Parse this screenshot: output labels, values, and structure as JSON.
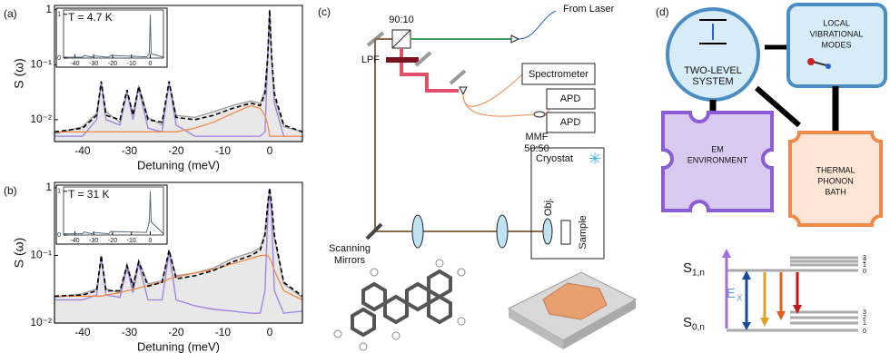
{
  "chart_data": [
    {
      "type": "line",
      "label": "(a)",
      "ylabel": "S (ω)",
      "xlabel": "Detuning (meV)",
      "log_y": true,
      "xlim": [
        -46,
        7
      ],
      "xticks": [
        -40,
        -30,
        -20,
        -10,
        0
      ],
      "ylim": [
        0.004,
        1.2
      ],
      "yticks": [
        {
          "value": 0.01,
          "label": "10⁻²"
        },
        {
          "value": 0.1,
          "label": "10⁻¹"
        },
        1
      ],
      "x": [
        -46,
        -40,
        -37,
        -36,
        -35,
        -32,
        -30.5,
        -29.2,
        -28,
        -26,
        -23,
        -21.5,
        -20,
        -16,
        -12,
        -8,
        -4,
        -2,
        -1,
        -0.4,
        0,
        0.4,
        1,
        3,
        7
      ],
      "series": [
        {
          "style": "area",
          "color": "#9a9a9a",
          "values": [
            0.0055,
            0.0075,
            0.013,
            0.045,
            0.014,
            0.009,
            0.03,
            0.013,
            0.042,
            0.011,
            0.008,
            0.045,
            0.012,
            0.011,
            0.014,
            0.018,
            0.022,
            0.02,
            0.035,
            0.17,
            0.95,
            0.13,
            0.025,
            0.0075,
            0.006
          ]
        },
        {
          "style": "solid",
          "color": "#9b7fe0",
          "values": [
            0.005,
            0.005,
            0.01,
            0.048,
            0.01,
            0.008,
            0.033,
            0.01,
            0.038,
            0.007,
            0.006,
            0.048,
            0.008,
            0.005,
            0.005,
            0.005,
            0.005,
            0.005,
            0.006,
            0.14,
            1,
            0.14,
            0.02,
            0.005,
            0.005
          ]
        },
        {
          "style": "solid",
          "color": "#f08a4b",
          "values": [
            0.006,
            0.006,
            0.006,
            0.006,
            0.006,
            0.006,
            0.006,
            0.006,
            0.006,
            0.006,
            0.006,
            0.006,
            0.006,
            0.007,
            0.009,
            0.013,
            0.018,
            0.016,
            0.012,
            0.008,
            0.005,
            0.005,
            0.005,
            0.005,
            0.005
          ]
        },
        {
          "style": "dashed",
          "color": "#000000",
          "values": [
            0.006,
            0.007,
            0.012,
            0.05,
            0.012,
            0.01,
            0.035,
            0.012,
            0.04,
            0.01,
            0.009,
            0.05,
            0.011,
            0.01,
            0.012,
            0.016,
            0.02,
            0.018,
            0.03,
            0.15,
            1,
            0.15,
            0.03,
            0.008,
            0.006
          ]
        }
      ],
      "inset": {
        "text": "T = 4.7 K",
        "color": "#5a6b7a",
        "xlim": [
          -46,
          7
        ],
        "xticks": [
          -40,
          -30,
          -20,
          -10,
          0
        ],
        "ylim": [
          0,
          1.1
        ],
        "yticks": [
          0,
          1
        ],
        "x": [
          -46,
          -36,
          -35,
          -31,
          -30,
          -22,
          -21,
          -2,
          -0.5,
          0,
          0.5,
          7
        ],
        "values": [
          0.02,
          0.02,
          0.06,
          0.02,
          0.05,
          0.02,
          0.06,
          0.03,
          0.1,
          1,
          0.1,
          0.02
        ]
      }
    },
    {
      "type": "line",
      "label": "(b)",
      "ylabel": "S (ω)",
      "xlabel": "Detuning (meV)",
      "log_y": true,
      "xlim": [
        -46,
        7
      ],
      "xticks": [
        -40,
        -30,
        -20,
        -10,
        0
      ],
      "ylim": [
        0.01,
        1.2
      ],
      "yticks": [
        {
          "value": 0.01,
          "label": "10⁻²"
        },
        {
          "value": 0.1,
          "label": "10⁻¹"
        },
        1
      ],
      "x": [
        -46,
        -40,
        -37,
        -36,
        -35,
        -32,
        -30.5,
        -29.2,
        -28,
        -26,
        -23,
        -21.5,
        -20,
        -16,
        -12,
        -8,
        -4,
        -2,
        -1,
        -0.4,
        0,
        0.4,
        1,
        3,
        7
      ],
      "series": [
        {
          "style": "area",
          "color": "#9a9a9a",
          "values": [
            0.024,
            0.027,
            0.032,
            0.09,
            0.032,
            0.028,
            0.075,
            0.036,
            0.085,
            0.038,
            0.042,
            0.115,
            0.05,
            0.055,
            0.065,
            0.09,
            0.11,
            0.13,
            0.22,
            0.55,
            0.95,
            0.55,
            0.18,
            0.038,
            0.024
          ]
        },
        {
          "style": "solid",
          "color": "#9b7fe0",
          "values": [
            0.022,
            0.022,
            0.026,
            0.1,
            0.026,
            0.024,
            0.065,
            0.028,
            0.075,
            0.022,
            0.022,
            0.11,
            0.022,
            0.018,
            0.016,
            0.015,
            0.014,
            0.014,
            0.03,
            0.4,
            0.9,
            0.4,
            0.03,
            0.014,
            0.015
          ]
        },
        {
          "style": "solid",
          "color": "#f08a4b",
          "values": [
            0.025,
            0.025,
            0.025,
            0.025,
            0.026,
            0.028,
            0.03,
            0.031,
            0.033,
            0.036,
            0.04,
            0.045,
            0.048,
            0.055,
            0.062,
            0.075,
            0.09,
            0.1,
            0.1,
            0.1,
            0.09,
            0.08,
            0.06,
            0.03,
            0.022
          ]
        },
        {
          "style": "dashed",
          "color": "#000000",
          "values": [
            0.025,
            0.026,
            0.03,
            0.1,
            0.03,
            0.03,
            0.07,
            0.035,
            0.08,
            0.035,
            0.04,
            0.12,
            0.045,
            0.05,
            0.06,
            0.08,
            0.1,
            0.12,
            0.2,
            0.6,
            1,
            0.6,
            0.2,
            0.04,
            0.025
          ]
        }
      ],
      "inset": {
        "text": "T = 31 K",
        "color": "#5a6b7a",
        "xlim": [
          -46,
          7
        ],
        "xticks": [
          -40,
          -30,
          -20,
          -10,
          0
        ],
        "ylim": [
          0,
          1.1
        ],
        "yticks": [
          0,
          1
        ],
        "x": [
          -46,
          -36,
          -35,
          -31,
          -30,
          -22,
          -21,
          -2,
          -0.5,
          0,
          0.5,
          7
        ],
        "values": [
          0.03,
          0.03,
          0.07,
          0.03,
          0.06,
          0.03,
          0.08,
          0.06,
          0.3,
          1,
          0.3,
          0.03
        ]
      }
    }
  ],
  "panel_c": {
    "label": "(c)",
    "splitter": "90:10",
    "laser": "From Laser",
    "filter": "LPF",
    "spectrometer": "Spectrometer",
    "detectors": [
      "APD",
      "APD"
    ],
    "fiber": [
      "MMF",
      "50:50"
    ],
    "cryostat": "Cryostat",
    "objective": "Obj.",
    "sample": "Sample",
    "mirrors": [
      "Scanning",
      "Mirrors"
    ]
  },
  "panel_d": {
    "label": "(d)",
    "tls": [
      "TWO-LEVEL",
      "SYSTEM"
    ],
    "vib": [
      "LOCAL",
      "VIBRATIONAL",
      "MODES"
    ],
    "em": [
      "EM",
      "ENVIRONMENT"
    ],
    "phonon": [
      "THERMAL",
      "PHONON",
      "BATH"
    ],
    "s1": "S",
    "s1_sub": "1,n",
    "s0": "S",
    "s0_sub": "0,n",
    "ex": "E",
    "ex_sub": "X",
    "levels": [
      "3",
      "2",
      "1",
      "0"
    ]
  }
}
